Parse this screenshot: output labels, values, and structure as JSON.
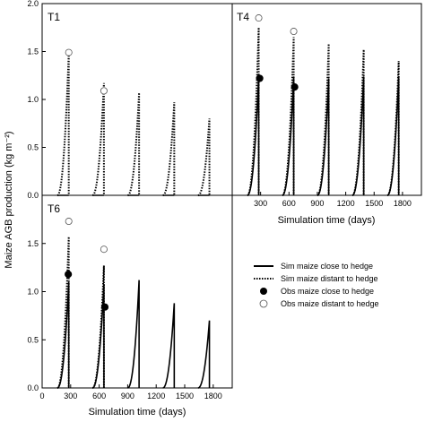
{
  "figure": {
    "ylabel": "Maize AGB production (kg m⁻²)",
    "xlabel_bottom_left": "Simulation time (days)",
    "xlabel_right": "Simulation time (days)"
  },
  "legend": [
    {
      "key": "sim_close",
      "label": "Sim maize close to hedge",
      "style": "solid-line"
    },
    {
      "key": "sim_distant",
      "label": "Sim maize distant to hedge",
      "style": "dotted-line"
    },
    {
      "key": "obs_close",
      "label": "Obs maize close to hedge",
      "style": "filled-circle"
    },
    {
      "key": "obs_distant",
      "label": "Obs maize distant to hedge",
      "style": "open-circle"
    }
  ],
  "colors": {
    "line": "#000000",
    "background": "#ffffff"
  },
  "chart_data": [
    {
      "panel": "T1",
      "type": "line",
      "xlim": [
        0,
        2000
      ],
      "ylim": [
        0,
        2.0
      ],
      "y_ticks": [
        "0.0",
        "0.5",
        "1.0",
        "1.5",
        "2.0"
      ],
      "x_ticks": [],
      "grid": false,
      "series": [
        {
          "key": "sim_close",
          "cycles": [
            {
              "start": 160,
              "peak_x": 280,
              "peak_y": 0.0
            },
            {
              "start": 530,
              "peak_x": 650,
              "peak_y": 0.0
            },
            {
              "start": 900,
              "peak_x": 1020,
              "peak_y": 0.0
            },
            {
              "start": 1270,
              "peak_x": 1390,
              "peak_y": 0.0
            },
            {
              "start": 1640,
              "peak_x": 1760,
              "peak_y": 0.0
            }
          ]
        },
        {
          "key": "sim_distant",
          "cycles": [
            {
              "start": 160,
              "peak_x": 280,
              "peak_y": 1.48
            },
            {
              "start": 530,
              "peak_x": 650,
              "peak_y": 1.17
            },
            {
              "start": 900,
              "peak_x": 1020,
              "peak_y": 1.07
            },
            {
              "start": 1270,
              "peak_x": 1390,
              "peak_y": 0.97
            },
            {
              "start": 1640,
              "peak_x": 1760,
              "peak_y": 0.8
            }
          ]
        }
      ],
      "observations": [
        {
          "key": "obs_distant",
          "x": 280,
          "y": 1.49
        },
        {
          "key": "obs_distant",
          "x": 650,
          "y": 1.09
        }
      ]
    },
    {
      "panel": "T4",
      "type": "line",
      "xlim": [
        0,
        2000
      ],
      "ylim": [
        0,
        2.0
      ],
      "y_ticks": [],
      "x_ticks": [
        "300",
        "600",
        "900",
        "1200",
        "1500",
        "1800"
      ],
      "grid": false,
      "series": [
        {
          "key": "sim_close",
          "cycles": [
            {
              "start": 160,
              "peak_x": 280,
              "peak_y": 1.25
            },
            {
              "start": 530,
              "peak_x": 650,
              "peak_y": 1.24
            },
            {
              "start": 900,
              "peak_x": 1020,
              "peak_y": 1.22
            },
            {
              "start": 1270,
              "peak_x": 1390,
              "peak_y": 1.24
            },
            {
              "start": 1640,
              "peak_x": 1760,
              "peak_y": 1.24
            }
          ]
        },
        {
          "key": "sim_distant",
          "cycles": [
            {
              "start": 160,
              "peak_x": 280,
              "peak_y": 1.75
            },
            {
              "start": 530,
              "peak_x": 650,
              "peak_y": 1.65
            },
            {
              "start": 900,
              "peak_x": 1020,
              "peak_y": 1.58
            },
            {
              "start": 1270,
              "peak_x": 1390,
              "peak_y": 1.52
            },
            {
              "start": 1640,
              "peak_x": 1760,
              "peak_y": 1.4
            }
          ]
        }
      ],
      "observations": [
        {
          "key": "obs_close",
          "x": 290,
          "y": 1.22
        },
        {
          "key": "obs_close",
          "x": 660,
          "y": 1.13
        },
        {
          "key": "obs_distant",
          "x": 280,
          "y": 1.85
        },
        {
          "key": "obs_distant",
          "x": 650,
          "y": 1.71
        }
      ]
    },
    {
      "panel": "T6",
      "type": "line",
      "xlim": [
        0,
        2000
      ],
      "ylim": [
        0,
        2.0
      ],
      "y_ticks": [
        "0.0",
        "0.5",
        "1.0",
        "1.5"
      ],
      "x_ticks": [
        "0",
        "300",
        "600",
        "900",
        "1200",
        "1500",
        "1800"
      ],
      "grid": false,
      "series": [
        {
          "key": "sim_close",
          "cycles": [
            {
              "start": 160,
              "peak_x": 280,
              "peak_y": 1.1
            },
            {
              "start": 530,
              "peak_x": 650,
              "peak_y": 1.08
            },
            {
              "start": 900,
              "peak_x": 1020,
              "peak_y": 1.12
            },
            {
              "start": 1270,
              "peak_x": 1390,
              "peak_y": 0.88
            },
            {
              "start": 1640,
              "peak_x": 1760,
              "peak_y": 0.7
            }
          ]
        },
        {
          "key": "sim_distant",
          "cycles": [
            {
              "start": 160,
              "peak_x": 280,
              "peak_y": 1.57
            },
            {
              "start": 530,
              "peak_x": 650,
              "peak_y": 1.27
            }
          ]
        }
      ],
      "observations": [
        {
          "key": "obs_close",
          "x": 275,
          "y": 1.18
        },
        {
          "key": "obs_close",
          "x": 660,
          "y": 0.84
        },
        {
          "key": "obs_distant",
          "x": 280,
          "y": 1.73
        },
        {
          "key": "obs_distant",
          "x": 650,
          "y": 1.44
        }
      ]
    }
  ]
}
